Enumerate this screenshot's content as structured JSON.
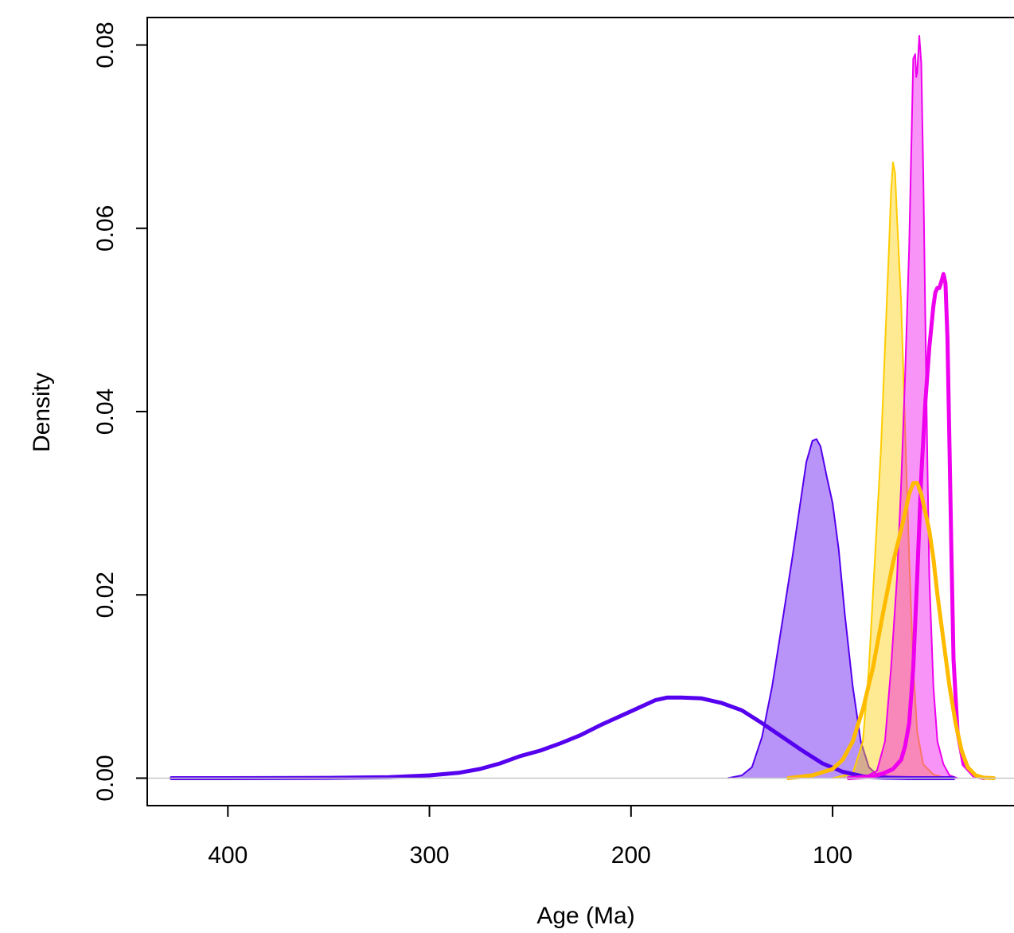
{
  "chart_data": {
    "type": "area",
    "title": "",
    "xlabel": "Age (Ma)",
    "ylabel": "Density",
    "xlim": [
      440,
      10
    ],
    "ylim": [
      -0.003,
      0.083
    ],
    "x_reversed": true,
    "x_ticks": [
      400,
      300,
      200,
      100
    ],
    "x_tick_labels": [
      "400",
      "300",
      "200",
      "100"
    ],
    "y_ticks": [
      0.0,
      0.02,
      0.04,
      0.06,
      0.08
    ],
    "y_tick_labels": [
      "0.00",
      "0.02",
      "0.04",
      "0.06",
      "0.08"
    ],
    "baseline": 0,
    "grid": false,
    "series": [
      {
        "style": "filled",
        "color": "#5500ee",
        "fill_opacity": 0.42,
        "points": [
          [
            152,
            0
          ],
          [
            145,
            0.0003
          ],
          [
            140,
            0.0012
          ],
          [
            135,
            0.0045
          ],
          [
            130,
            0.01
          ],
          [
            125,
            0.017
          ],
          [
            120,
            0.024
          ],
          [
            116,
            0.03
          ],
          [
            113,
            0.0345
          ],
          [
            110,
            0.0368
          ],
          [
            108,
            0.037
          ],
          [
            106,
            0.0362
          ],
          [
            103,
            0.033
          ],
          [
            100,
            0.03
          ],
          [
            97,
            0.025
          ],
          [
            94,
            0.018
          ],
          [
            90,
            0.01
          ],
          [
            86,
            0.004
          ],
          [
            82,
            0.0012
          ],
          [
            78,
            0.0004
          ],
          [
            70,
            0.0001
          ],
          [
            60,
            5e-05
          ],
          [
            38,
            0
          ]
        ]
      },
      {
        "style": "filled",
        "color": "#ffcc00",
        "fill_opacity": 0.42,
        "points": [
          [
            100,
            0
          ],
          [
            90,
            0.0005
          ],
          [
            85,
            0.004
          ],
          [
            82,
            0.012
          ],
          [
            79,
            0.024
          ],
          [
            76,
            0.036
          ],
          [
            74,
            0.047
          ],
          [
            72,
            0.058
          ],
          [
            71,
            0.064
          ],
          [
            70,
            0.0672
          ],
          [
            69,
            0.066
          ],
          [
            68,
            0.061
          ],
          [
            66,
            0.052
          ],
          [
            64,
            0.038
          ],
          [
            62,
            0.024
          ],
          [
            60,
            0.012
          ],
          [
            58,
            0.005
          ],
          [
            55,
            0.0015
          ],
          [
            50,
            0.0004
          ],
          [
            45,
            0.0001
          ],
          [
            40,
            0
          ]
        ]
      },
      {
        "style": "filled",
        "color": "#ee00ee",
        "fill_opacity": 0.42,
        "points": [
          [
            85,
            0
          ],
          [
            78,
            0.0008
          ],
          [
            74,
            0.004
          ],
          [
            71,
            0.012
          ],
          [
            68,
            0.022
          ],
          [
            66,
            0.032
          ],
          [
            64,
            0.044
          ],
          [
            62,
            0.058
          ],
          [
            61,
            0.068
          ],
          [
            60,
            0.0785
          ],
          [
            59,
            0.079
          ],
          [
            58.5,
            0.0765
          ],
          [
            58,
            0.077
          ],
          [
            57,
            0.081
          ],
          [
            56,
            0.078
          ],
          [
            55,
            0.066
          ],
          [
            54,
            0.05
          ],
          [
            53,
            0.035
          ],
          [
            52,
            0.022
          ],
          [
            50,
            0.01
          ],
          [
            48,
            0.004
          ],
          [
            45,
            0.0015
          ],
          [
            42,
            0.0003
          ],
          [
            38,
            0
          ]
        ]
      },
      {
        "style": "line",
        "color": "#5500ee",
        "line_width": 5,
        "points": [
          [
            428,
            0
          ],
          [
            400,
            0
          ],
          [
            350,
            3e-05
          ],
          [
            320,
            0.0001
          ],
          [
            300,
            0.0003
          ],
          [
            285,
            0.0006
          ],
          [
            275,
            0.001
          ],
          [
            265,
            0.0016
          ],
          [
            255,
            0.0024
          ],
          [
            245,
            0.003
          ],
          [
            235,
            0.0038
          ],
          [
            225,
            0.0047
          ],
          [
            215,
            0.0058
          ],
          [
            205,
            0.0068
          ],
          [
            195,
            0.0078
          ],
          [
            188,
            0.0085
          ],
          [
            182,
            0.0088
          ],
          [
            175,
            0.0088
          ],
          [
            165,
            0.0087
          ],
          [
            155,
            0.0082
          ],
          [
            145,
            0.0074
          ],
          [
            135,
            0.006
          ],
          [
            125,
            0.0045
          ],
          [
            115,
            0.003
          ],
          [
            105,
            0.0016
          ],
          [
            95,
            0.0007
          ],
          [
            85,
            0.0002
          ],
          [
            75,
            5e-05
          ],
          [
            60,
            0
          ],
          [
            40,
            0
          ]
        ]
      },
      {
        "style": "line",
        "color": "#ee00ee",
        "line_width": 5,
        "points": [
          [
            92,
            0
          ],
          [
            80,
            0.0002
          ],
          [
            75,
            0.0005
          ],
          [
            70,
            0.001
          ],
          [
            68,
            0.0015
          ],
          [
            66,
            0.002
          ],
          [
            64,
            0.0035
          ],
          [
            62,
            0.006
          ],
          [
            60,
            0.012
          ],
          [
            58,
            0.022
          ],
          [
            56,
            0.033
          ],
          [
            54,
            0.041
          ],
          [
            52,
            0.047
          ],
          [
            50,
            0.0515
          ],
          [
            49,
            0.053
          ],
          [
            48,
            0.0535
          ],
          [
            47,
            0.0535
          ],
          [
            46,
            0.0542
          ],
          [
            45,
            0.055
          ],
          [
            44,
            0.054
          ],
          [
            43,
            0.048
          ],
          [
            42,
            0.036
          ],
          [
            41,
            0.024
          ],
          [
            40,
            0.013
          ],
          [
            38,
            0.005
          ],
          [
            35,
            0.0015
          ],
          [
            30,
            0.0003
          ],
          [
            25,
            0
          ]
        ]
      },
      {
        "style": "line",
        "color": "#ffbb00",
        "line_width": 5,
        "points": [
          [
            122,
            0
          ],
          [
            110,
            0.0003
          ],
          [
            100,
            0.001
          ],
          [
            95,
            0.002
          ],
          [
            90,
            0.004
          ],
          [
            85,
            0.0075
          ],
          [
            80,
            0.012
          ],
          [
            75,
            0.018
          ],
          [
            70,
            0.0235
          ],
          [
            65,
            0.028
          ],
          [
            62,
            0.031
          ],
          [
            60,
            0.0322
          ],
          [
            58,
            0.0322
          ],
          [
            56,
            0.031
          ],
          [
            54,
            0.029
          ],
          [
            52,
            0.027
          ],
          [
            50,
            0.024
          ],
          [
            48,
            0.02
          ],
          [
            45,
            0.015
          ],
          [
            42,
            0.01
          ],
          [
            39,
            0.006
          ],
          [
            36,
            0.003
          ],
          [
            33,
            0.0012
          ],
          [
            29,
            0.0003
          ],
          [
            25,
            5e-05
          ],
          [
            20,
            0
          ]
        ]
      }
    ]
  }
}
